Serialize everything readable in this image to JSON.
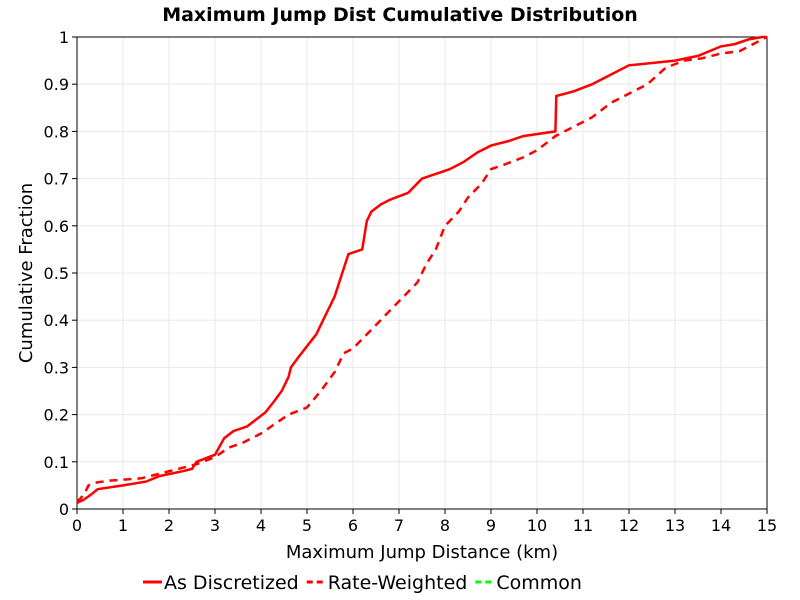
{
  "chart_data": {
    "type": "line",
    "title": "Maximum Jump Dist Cumulative Distribution",
    "xlabel": "Maximum Jump Distance (km)",
    "ylabel": "Cumulative Fraction",
    "xlim": [
      0,
      15
    ],
    "ylim": [
      0,
      1
    ],
    "x_ticks": [
      "0",
      "1",
      "2",
      "3",
      "4",
      "5",
      "6",
      "7",
      "8",
      "9",
      "10",
      "11",
      "12",
      "13",
      "14",
      "15"
    ],
    "y_ticks": [
      "0",
      "0.1",
      "0.2",
      "0.3",
      "0.4",
      "0.5",
      "0.6",
      "0.7",
      "0.8",
      "0.9",
      "1"
    ],
    "grid": true,
    "legend_position": "bottom",
    "series": [
      {
        "name": "As Discretized",
        "color": "#ff0000",
        "dash": "solid",
        "x": [
          0,
          0.15,
          0.3,
          0.45,
          1.0,
          1.5,
          1.8,
          2.3,
          2.5,
          2.6,
          3.0,
          3.2,
          3.4,
          3.7,
          3.9,
          4.1,
          4.3,
          4.45,
          4.6,
          4.65,
          4.8,
          5.0,
          5.2,
          5.35,
          5.5,
          5.6,
          5.8,
          5.9,
          6.2,
          6.3,
          6.4,
          6.6,
          6.8,
          7.2,
          7.5,
          7.8,
          8.1,
          8.4,
          8.7,
          9.0,
          9.4,
          9.7,
          10.4,
          10.42,
          10.8,
          11.2,
          11.5,
          12.0,
          12.5,
          13.0,
          13.5,
          14.0,
          14.3,
          14.6,
          14.9,
          15.0
        ],
        "y": [
          0.013,
          0.02,
          0.03,
          0.042,
          0.05,
          0.058,
          0.07,
          0.08,
          0.085,
          0.1,
          0.115,
          0.15,
          0.165,
          0.175,
          0.19,
          0.205,
          0.23,
          0.25,
          0.28,
          0.3,
          0.32,
          0.345,
          0.37,
          0.4,
          0.43,
          0.45,
          0.51,
          0.54,
          0.55,
          0.61,
          0.63,
          0.645,
          0.655,
          0.67,
          0.7,
          0.71,
          0.72,
          0.735,
          0.755,
          0.77,
          0.78,
          0.79,
          0.8,
          0.875,
          0.885,
          0.9,
          0.915,
          0.94,
          0.945,
          0.95,
          0.96,
          0.98,
          0.985,
          0.995,
          1.0,
          1.0
        ]
      },
      {
        "name": "Rate-Weighted",
        "color": "#ff0000",
        "dash": "dashed",
        "x": [
          0,
          0.15,
          0.25,
          0.4,
          0.7,
          1.0,
          1.4,
          1.8,
          2.2,
          2.6,
          3.0,
          3.3,
          3.6,
          4.0,
          4.3,
          4.6,
          5.0,
          5.3,
          5.6,
          5.8,
          6.0,
          6.3,
          6.6,
          6.9,
          7.1,
          7.4,
          7.6,
          7.8,
          8.0,
          8.3,
          8.5,
          8.8,
          9.0,
          9.3,
          9.7,
          10.0,
          10.4,
          10.8,
          11.2,
          11.6,
          12.0,
          12.4,
          12.8,
          13.2,
          13.6,
          14.0,
          14.4,
          14.7,
          15.0
        ],
        "y": [
          0.015,
          0.03,
          0.05,
          0.056,
          0.06,
          0.062,
          0.065,
          0.075,
          0.085,
          0.095,
          0.11,
          0.13,
          0.14,
          0.16,
          0.18,
          0.2,
          0.215,
          0.25,
          0.29,
          0.33,
          0.34,
          0.37,
          0.4,
          0.43,
          0.45,
          0.48,
          0.52,
          0.55,
          0.6,
          0.63,
          0.66,
          0.69,
          0.72,
          0.73,
          0.745,
          0.76,
          0.79,
          0.81,
          0.83,
          0.86,
          0.88,
          0.9,
          0.935,
          0.95,
          0.955,
          0.965,
          0.97,
          0.985,
          1.0
        ]
      },
      {
        "name": "Common",
        "color": "#00ff00",
        "dash": "dashed",
        "x": [],
        "y": []
      }
    ]
  }
}
